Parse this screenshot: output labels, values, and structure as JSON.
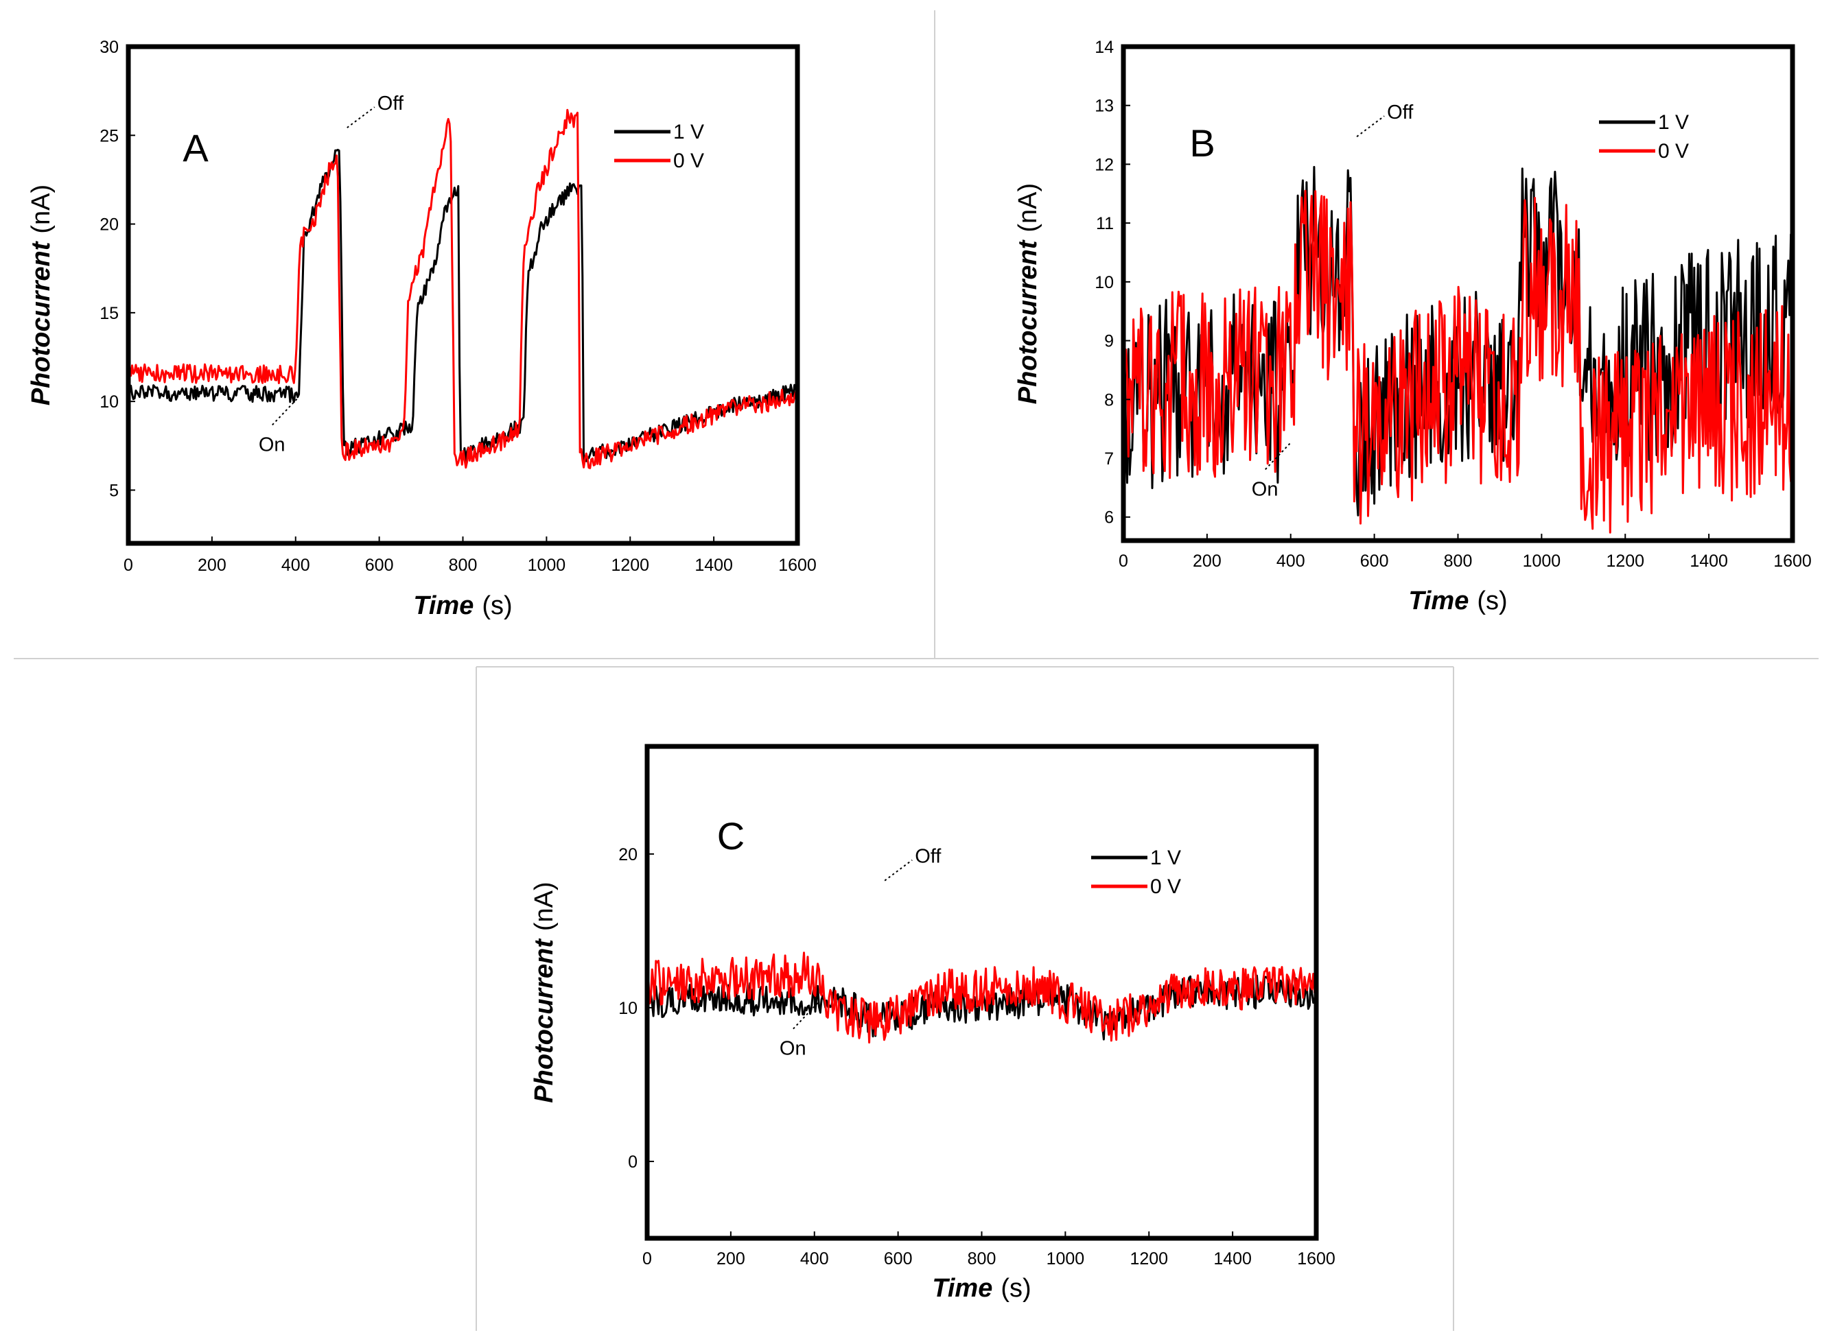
{
  "chart_data": [
    {
      "type": "line",
      "panel_label": "A",
      "xlabel_italic": "Time",
      "xlabel_unit": "(s)",
      "ylabel_italic": "Photocurrent",
      "ylabel_unit": "(nA)",
      "xlim": [
        0,
        1600
      ],
      "ylim": [
        2,
        30
      ],
      "x_ticks": [
        0,
        200,
        400,
        600,
        800,
        1000,
        1200,
        1400,
        1600
      ],
      "y_ticks": [
        5,
        10,
        15,
        20,
        25,
        30
      ],
      "legend": [
        "1 V",
        "0 V"
      ],
      "annotations": {
        "on": "On",
        "off": "Off",
        "on_at": [
          410,
          10.3
        ],
        "off_at": [
          510,
          25.2
        ]
      },
      "series": [
        {
          "name": "1 V",
          "color": "#000000",
          "noise": 0.5,
          "pts": [
            [
              0,
              10.5
            ],
            [
              408,
              10.4
            ],
            [
              420,
              19
            ],
            [
              460,
              22
            ],
            [
              505,
              24.5
            ],
            [
              515,
              7.5
            ],
            [
              520,
              7.3
            ],
            [
              640,
              8.2
            ],
            [
              680,
              8.6
            ],
            [
              690,
              15
            ],
            [
              730,
              17.5
            ],
            [
              760,
              21
            ],
            [
              790,
              22
            ],
            [
              793,
              7
            ],
            [
              800,
              6.9
            ],
            [
              920,
              8.4
            ],
            [
              945,
              8.7
            ],
            [
              955,
              17
            ],
            [
              990,
              20
            ],
            [
              1060,
              22
            ],
            [
              1085,
              22
            ],
            [
              1088,
              6.9
            ],
            [
              1100,
              6.9
            ],
            [
              1300,
              8.5
            ],
            [
              1450,
              9.8
            ],
            [
              1600,
              10.6
            ]
          ]
        },
        {
          "name": "0 V",
          "color": "#ff0000",
          "noise": 0.6,
          "pts": [
            [
              0,
              11.6
            ],
            [
              400,
              11.5
            ],
            [
              410,
              19
            ],
            [
              450,
              20.5
            ],
            [
              480,
              23
            ],
            [
              500,
              24
            ],
            [
              510,
              7.5
            ],
            [
              520,
              7.2
            ],
            [
              620,
              7.6
            ],
            [
              660,
              8.6
            ],
            [
              670,
              16
            ],
            [
              700,
              18
            ],
            [
              740,
              23
            ],
            [
              770,
              26
            ],
            [
              780,
              7.2
            ],
            [
              790,
              6.6
            ],
            [
              900,
              7.8
            ],
            [
              935,
              8.5
            ],
            [
              945,
              18
            ],
            [
              980,
              22
            ],
            [
              1050,
              26
            ],
            [
              1075,
              26
            ],
            [
              1080,
              7
            ],
            [
              1090,
              6.6
            ],
            [
              1300,
              8.4
            ],
            [
              1450,
              9.6
            ],
            [
              1600,
              10.3
            ]
          ]
        }
      ]
    },
    {
      "type": "line",
      "panel_label": "B",
      "xlabel_italic": "Time",
      "xlabel_unit": "(s)",
      "ylabel_italic": "Photocurrent",
      "ylabel_unit": "(nA)",
      "xlim": [
        0,
        1600
      ],
      "ylim": [
        5.6,
        14
      ],
      "x_ticks": [
        0,
        200,
        400,
        600,
        800,
        1000,
        1200,
        1400,
        1600
      ],
      "y_ticks": [
        6,
        7,
        8,
        9,
        10,
        11,
        12,
        13,
        14
      ],
      "legend": [
        "1 V",
        "0 V"
      ],
      "annotations": {
        "on": "On",
        "off": "Off",
        "on_at": [
          405,
          7.3
        ],
        "off_at": [
          545,
          12.4
        ]
      },
      "series": [
        {
          "name": "1 V",
          "color": "#000000",
          "noise": 1.8,
          "pts": [
            [
              0,
              8.0
            ],
            [
              200,
              8.2
            ],
            [
              400,
              8.2
            ],
            [
              420,
              10.6
            ],
            [
              480,
              10.4
            ],
            [
              550,
              10.3
            ],
            [
              552,
              7.4
            ],
            [
              600,
              7.6
            ],
            [
              800,
              8.6
            ],
            [
              940,
              8.0
            ],
            [
              955,
              10.5
            ],
            [
              1000,
              10.4
            ],
            [
              1090,
              10.0
            ],
            [
              1095,
              8.1
            ],
            [
              1200,
              8.4
            ],
            [
              1400,
              9.0
            ],
            [
              1600,
              9.3
            ]
          ]
        },
        {
          "name": "0 V",
          "color": "#ff0000",
          "noise": 1.8,
          "pts": [
            [
              0,
              8.2
            ],
            [
              200,
              8.3
            ],
            [
              400,
              8.3
            ],
            [
              420,
              10.0
            ],
            [
              480,
              9.9
            ],
            [
              550,
              9.8
            ],
            [
              552,
              7.4
            ],
            [
              600,
              7.5
            ],
            [
              800,
              8.3
            ],
            [
              940,
              7.8
            ],
            [
              955,
              10.0
            ],
            [
              1000,
              9.9
            ],
            [
              1090,
              9.6
            ],
            [
              1095,
              7.1
            ],
            [
              1200,
              7.3
            ],
            [
              1400,
              7.8
            ],
            [
              1600,
              8.0
            ]
          ]
        }
      ]
    },
    {
      "type": "line",
      "panel_label": "C",
      "xlabel_italic": "Time",
      "xlabel_unit": "(s)",
      "ylabel_italic": "Photocurrent",
      "ylabel_unit": "(nA)",
      "xlim": [
        0,
        1600
      ],
      "ylim": [
        -5,
        27
      ],
      "x_ticks": [
        0,
        200,
        400,
        600,
        800,
        1000,
        1200,
        1400,
        1600
      ],
      "y_ticks": [
        0,
        10,
        20
      ],
      "legend": [
        "1 V",
        "0 V"
      ],
      "annotations": {
        "on": "On",
        "off": "Off",
        "on_at": [
          415,
          10.5
        ],
        "off_at": [
          555,
          18
        ]
      },
      "series": [
        {
          "name": "1 V",
          "color": "#000000",
          "noise": 1.2,
          "pts": [
            [
              0,
              10.4
            ],
            [
              400,
              10.6
            ],
            [
              420,
              10.8
            ],
            [
              430,
              11
            ],
            [
              550,
              9
            ],
            [
              560,
              9.2
            ],
            [
              700,
              10
            ],
            [
              960,
              10.4
            ],
            [
              970,
              11
            ],
            [
              1090,
              9
            ],
            [
              1100,
              9
            ],
            [
              1300,
              11
            ],
            [
              1600,
              11
            ]
          ]
        },
        {
          "name": "0 V",
          "color": "#ff0000",
          "noise": 1.6,
          "pts": [
            [
              0,
              11.6
            ],
            [
              400,
              12.2
            ],
            [
              420,
              12.2
            ],
            [
              430,
              10
            ],
            [
              550,
              9
            ],
            [
              560,
              9
            ],
            [
              700,
              11
            ],
            [
              960,
              11.5
            ],
            [
              970,
              11
            ],
            [
              1090,
              9
            ],
            [
              1100,
              9
            ],
            [
              1300,
              11.3
            ],
            [
              1600,
              11.3
            ]
          ]
        }
      ]
    }
  ]
}
